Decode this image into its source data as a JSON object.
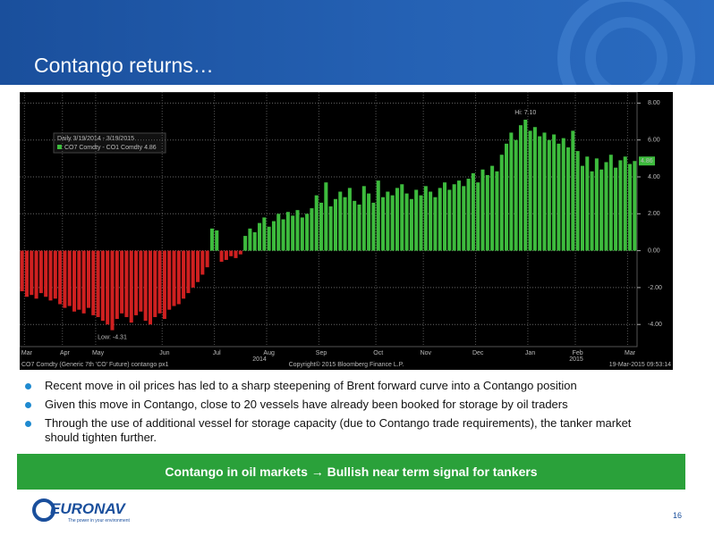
{
  "header": {
    "title": "Contango returns…"
  },
  "chart_data": {
    "type": "bar",
    "legend_title": "Daily 3/19/2014 - 3/19/2015",
    "name": "CO7 Comdty - CO1 Comdty 4.86",
    "high_label": "Hi: 7.10",
    "low_label": "Low: -4.31",
    "years": [
      "2014",
      "2015"
    ],
    "footer_left": "CO7 Comdty (Generic 7th 'CO' Future) contango px1",
    "footer_center": "Copyright© 2015 Bloomberg Finance L.P.",
    "footer_right": "19-Mar-2015 09:53:14",
    "positive_color": "#3dbb3d",
    "negative_color": "#cf2020",
    "ylim": [
      -5.2,
      8.6
    ],
    "yticks": [
      {
        "value": 8,
        "label": "8.00"
      },
      {
        "value": 6,
        "label": "6.00"
      },
      {
        "value": 4,
        "label": "4.00"
      },
      {
        "value": 2,
        "label": "2.00"
      },
      {
        "value": 0,
        "label": "0.00"
      },
      {
        "value": -2,
        "label": "-2.00"
      },
      {
        "value": -4,
        "label": "-4.00"
      }
    ],
    "grid": true,
    "categories": [
      null,
      "Mar",
      null,
      null,
      null,
      null,
      null,
      null,
      null,
      "Apr",
      null,
      null,
      null,
      null,
      null,
      null,
      "May",
      null,
      null,
      null,
      null,
      null,
      null,
      null,
      null,
      null,
      null,
      null,
      null,
      null,
      "Jun",
      null,
      null,
      null,
      null,
      null,
      null,
      null,
      null,
      null,
      null,
      "Jul",
      null,
      null,
      null,
      null,
      null,
      null,
      null,
      null,
      null,
      null,
      "Aug",
      null,
      null,
      null,
      null,
      null,
      null,
      null,
      null,
      null,
      null,
      "Sep",
      null,
      null,
      null,
      null,
      null,
      null,
      null,
      null,
      null,
      null,
      null,
      "Oct",
      null,
      null,
      null,
      null,
      null,
      null,
      null,
      null,
      null,
      "Nov",
      null,
      null,
      null,
      null,
      null,
      null,
      null,
      null,
      null,
      null,
      "Dec",
      null,
      null,
      null,
      null,
      null,
      null,
      null,
      null,
      null,
      null,
      "Jan",
      null,
      null,
      null,
      null,
      null,
      null,
      null,
      null,
      null,
      "Feb",
      null,
      null,
      null,
      null,
      null,
      null,
      null,
      null,
      null,
      null,
      "Mar",
      null
    ],
    "values": [
      -2.2,
      -2.5,
      -2.4,
      -2.6,
      -2.3,
      -2.5,
      -2.7,
      -2.6,
      -2.9,
      -3.1,
      -3.0,
      -3.3,
      -3.2,
      -3.4,
      -3.1,
      -3.5,
      -3.6,
      -3.8,
      -4.0,
      -4.31,
      -3.7,
      -3.4,
      -3.6,
      -3.9,
      -3.5,
      -3.3,
      -3.8,
      -4.0,
      -3.6,
      -3.4,
      -3.7,
      -3.2,
      -3.0,
      -2.9,
      -2.6,
      -2.3,
      -2.0,
      -1.7,
      -1.3,
      -0.9,
      1.2,
      1.1,
      -0.6,
      -0.5,
      -0.3,
      -0.4,
      -0.2,
      0.8,
      1.2,
      1.0,
      1.5,
      1.8,
      1.3,
      1.6,
      2.0,
      1.7,
      2.1,
      1.9,
      2.2,
      1.8,
      2.0,
      2.3,
      3.0,
      2.6,
      3.7,
      2.4,
      2.8,
      3.2,
      2.9,
      3.4,
      2.7,
      2.5,
      3.5,
      3.1,
      2.6,
      3.8,
      2.9,
      3.2,
      3.0,
      3.4,
      3.6,
      3.1,
      2.8,
      3.3,
      3.0,
      3.5,
      3.2,
      2.9,
      3.4,
      3.7,
      3.3,
      3.6,
      3.8,
      3.5,
      3.9,
      4.2,
      3.7,
      4.4,
      4.1,
      4.6,
      4.3,
      5.2,
      5.8,
      6.4,
      6.0,
      6.8,
      7.1,
      6.5,
      6.7,
      6.2,
      6.4,
      6.0,
      6.3,
      5.8,
      6.1,
      5.6,
      6.5,
      5.4,
      4.6,
      5.1,
      4.3,
      5.0,
      4.4,
      4.8,
      5.2,
      4.5,
      4.9,
      5.1,
      4.7,
      4.86
    ]
  },
  "bullets": [
    "Recent move in oil prices has led to a sharp steepening of Brent forward curve into a Contango position",
    "Given this move in Contango, close to 20 vessels have already been booked for storage by oil traders",
    "Through the use of additional vessel for storage capacity (due to Contango trade requirements), the tanker market should tighten further."
  ],
  "banner": "Contango in oil markets → Bullish near term signal for tankers",
  "footer": {
    "logo": "EURONAV",
    "tagline": "The power in your environment",
    "page": "16"
  }
}
